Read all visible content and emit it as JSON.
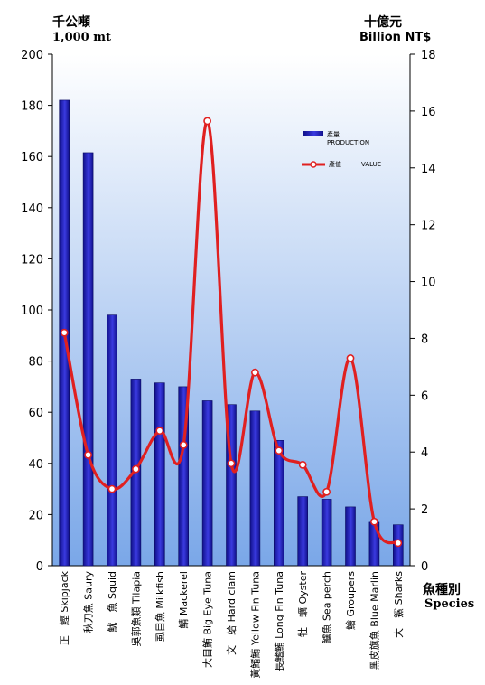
{
  "left_axis": {
    "unit_zh": "千公噸",
    "unit_en": "1,000 mt"
  },
  "right_axis": {
    "unit_zh": "十億元",
    "unit_en": "Billion NT$"
  },
  "x_axis": {
    "label_zh": "魚種別",
    "label_en": "Species"
  },
  "colors": {
    "bar": "#1a1aa8",
    "bar_highlight": "#3a3ae0",
    "line": "#e02020",
    "marker_fill": "#ffffff",
    "bg_top": "#ffffff",
    "bg_bottom": "#7aa7e8"
  },
  "chart_data": {
    "type": "bar",
    "categories": [
      "正　鰹 Skipjack",
      "秋刀魚 Saury",
      "魷　魚 Squid",
      "吳郭魚類 Tilapia",
      "虱目魚 Milkfish",
      "鯖 Mackerel",
      "大目鮪 Big Eye Tuna",
      "文　蛤 Hard clam",
      "黃鰭鮪 Yellow Fin Tuna",
      "長鰭鮪 Long Fin Tuna",
      "牡　蠣 Oyster",
      "鱸魚 Sea perch",
      "鱠 Groupers",
      "黑皮旗魚 Blue Marlin",
      "大　鯊 Sharks"
    ],
    "series": [
      {
        "name": "產量 PRODUCTION",
        "type": "bar",
        "axis": "left",
        "values": [
          182,
          161.5,
          98,
          73,
          71.5,
          70,
          64.5,
          63,
          60.5,
          49,
          27,
          26,
          23,
          17,
          16
        ]
      },
      {
        "name": "產值 VALUE",
        "type": "line",
        "axis": "right",
        "values": [
          8.2,
          3.9,
          2.7,
          3.4,
          4.75,
          4.25,
          15.65,
          3.6,
          6.8,
          4.05,
          3.55,
          2.6,
          7.3,
          1.55,
          0.8
        ]
      }
    ],
    "y_left": {
      "ylim": [
        0,
        200
      ],
      "ticks": [
        0,
        20,
        40,
        60,
        80,
        100,
        120,
        140,
        160,
        180,
        200
      ]
    },
    "y_right": {
      "ylim": [
        0,
        18
      ],
      "ticks": [
        0,
        2,
        4,
        6,
        8,
        10,
        12,
        14,
        16,
        18
      ]
    },
    "legend": {
      "placement": "upper-right inside plot",
      "items": [
        {
          "zh": "產量",
          "en": "PRODUCTION",
          "kind": "bar"
        },
        {
          "zh": "產值",
          "en": "VALUE",
          "kind": "line"
        }
      ]
    },
    "grid": false
  }
}
